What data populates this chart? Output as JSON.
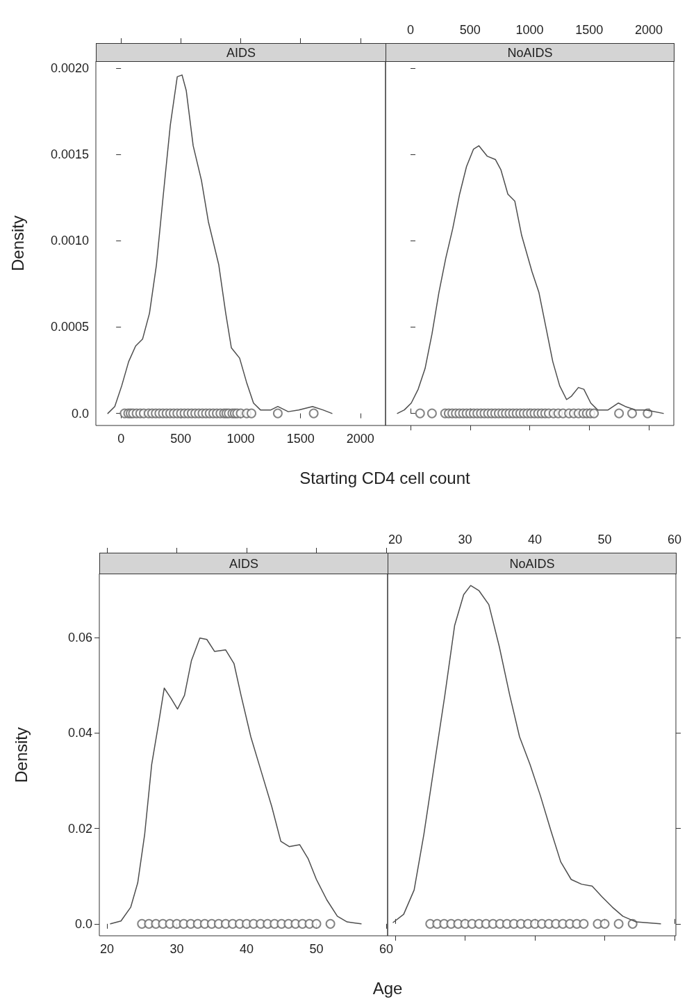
{
  "chart_data": [
    {
      "type": "line",
      "title": "AIDS",
      "xlabel": "Starting CD4 cell count",
      "ylabel": "Density",
      "xlim": [
        -210,
        2210
      ],
      "xticks": [
        0,
        500,
        1000,
        1500,
        2000
      ],
      "ylim": [
        -7e-05,
        0.00204
      ],
      "yticks": [
        {
          "value": 0,
          "label": "0.0"
        },
        0.0005,
        {
          "value": 0.001,
          "label": "0.0010"
        },
        0.0015,
        {
          "value": 0.002,
          "label": "0.0020"
        }
      ],
      "series": [
        {
          "type": "line",
          "marker": "none",
          "color": "#4d4d4d",
          "x": [
            -110,
            -52,
            6,
            64,
            122,
            180,
            238,
            296,
            354,
            412,
            470,
            510,
            545,
            603,
            672,
            730,
            817,
            875,
            922,
            991,
            1049,
            1107,
            1165,
            1252,
            1310,
            1397,
            1484,
            1600,
            1687,
            1762
          ],
          "values": [
            0,
            4e-05,
            0.00016,
            0.0003,
            0.00039,
            0.00043,
            0.00058,
            0.00086,
            0.00127,
            0.00167,
            0.00195,
            0.00196,
            0.00187,
            0.00155,
            0.00135,
            0.00111,
            0.00086,
            0.00058,
            0.00038,
            0.00032,
            0.00018,
            6e-05,
            2e-05,
            2e-05,
            4e-05,
            1e-05,
            2e-05,
            4e-05,
            2e-05,
            0
          ]
        },
        {
          "type": "scatter",
          "marker": "circle",
          "color": "#666666",
          "x": [
            30,
            60,
            80,
            100,
            130,
            160,
            190,
            230,
            260,
            290,
            320,
            350,
            380,
            410,
            440,
            470,
            500,
            530,
            560,
            590,
            620,
            650,
            680,
            710,
            740,
            770,
            800,
            830,
            860,
            880,
            900,
            930,
            950,
            970,
            1000,
            1050,
            1090,
            1310,
            1610
          ],
          "values": [
            0,
            0,
            0,
            0,
            0,
            0,
            0,
            0,
            0,
            0,
            0,
            0,
            0,
            0,
            0,
            0,
            0,
            0,
            0,
            0,
            0,
            0,
            0,
            0,
            0,
            0,
            0,
            0,
            0,
            0,
            0,
            0,
            0,
            0,
            0,
            0,
            0,
            0,
            0
          ]
        }
      ]
    },
    {
      "type": "line",
      "title": "NoAIDS",
      "tick_labels": "x",
      "xlim": [
        -210,
        2210
      ],
      "xticks": [
        0,
        500,
        1000,
        1500,
        2000
      ],
      "ylim": [
        -7e-05,
        0.00204
      ],
      "yticks": [
        0,
        0.0005,
        0.001,
        0.0015,
        0.002
      ],
      "series": [
        {
          "type": "line",
          "marker": "none",
          "color": "#4d4d4d",
          "x": [
            -110,
            -52,
            6,
            64,
            122,
            180,
            238,
            296,
            354,
            412,
            470,
            528,
            574,
            643,
            713,
            759,
            817,
            875,
            933,
            1020,
            1078,
            1136,
            1194,
            1252,
            1310,
            1351,
            1409,
            1455,
            1513,
            1571,
            1658,
            1745,
            1803,
            1890,
            1977,
            2122
          ],
          "values": [
            0,
            2e-05,
            6e-05,
            0.00014,
            0.00026,
            0.00046,
            0.0007,
            0.0009,
            0.00107,
            0.00127,
            0.00143,
            0.00153,
            0.00155,
            0.00149,
            0.00147,
            0.00141,
            0.00127,
            0.00123,
            0.00103,
            0.00082,
            0.0007,
            0.0005,
            0.0003,
            0.00016,
            8e-05,
            0.0001,
            0.00015,
            0.00014,
            6e-05,
            2e-05,
            2e-05,
            6e-05,
            4e-05,
            2e-05,
            2e-05,
            0
          ]
        },
        {
          "type": "scatter",
          "marker": "circle",
          "color": "#666666",
          "x": [
            80,
            180,
            290,
            320,
            350,
            380,
            410,
            440,
            470,
            500,
            530,
            560,
            590,
            620,
            650,
            680,
            710,
            740,
            770,
            800,
            830,
            860,
            890,
            920,
            950,
            980,
            1010,
            1040,
            1070,
            1100,
            1130,
            1160,
            1200,
            1240,
            1280,
            1330,
            1370,
            1410,
            1450,
            1480,
            1510,
            1540,
            1750,
            1860,
            1990
          ],
          "values": [
            0,
            0,
            0,
            0,
            0,
            0,
            0,
            0,
            0,
            0,
            0,
            0,
            0,
            0,
            0,
            0,
            0,
            0,
            0,
            0,
            0,
            0,
            0,
            0,
            0,
            0,
            0,
            0,
            0,
            0,
            0,
            0,
            0,
            0,
            0,
            0,
            0,
            0,
            0,
            0,
            0,
            0,
            0,
            0,
            0
          ]
        }
      ]
    },
    {
      "type": "line",
      "title": "AIDS",
      "xlabel": "Age",
      "ylabel": "Density",
      "xlim": [
        18.9,
        60.2
      ],
      "xticks": [
        20,
        30,
        40,
        50,
        60
      ],
      "ylim": [
        -0.0025,
        0.0734
      ],
      "yticks": [
        {
          "value": 0,
          "label": "0.0"
        },
        0.02,
        0.04,
        0.06
      ],
      "series": [
        {
          "type": "line",
          "marker": "none",
          "color": "#4d4d4d",
          "x": [
            20.5,
            22,
            23.4,
            24.4,
            25.4,
            26.4,
            27.4,
            28.2,
            29.2,
            30.1,
            31.1,
            32.1,
            33.3,
            34.3,
            35.4,
            37,
            38.2,
            39.2,
            40.6,
            42.1,
            43.6,
            44.9,
            46.1,
            47.6,
            48.8,
            50,
            51.5,
            53,
            54.4,
            56.4
          ],
          "values": [
            0,
            0.0006,
            0.0035,
            0.0086,
            0.0188,
            0.0334,
            0.0421,
            0.0494,
            0.0472,
            0.045,
            0.0479,
            0.0552,
            0.0599,
            0.0596,
            0.0571,
            0.0574,
            0.0545,
            0.0479,
            0.0392,
            0.0319,
            0.0246,
            0.0173,
            0.0162,
            0.0166,
            0.0137,
            0.0093,
            0.005,
            0.0016,
            0.0004,
            0
          ]
        },
        {
          "type": "scatter",
          "marker": "circle",
          "color": "#666666",
          "x": [
            25,
            26,
            27,
            28,
            29,
            30,
            31,
            32,
            33,
            34,
            35,
            36,
            37,
            38,
            39,
            40,
            41,
            42,
            43,
            44,
            45,
            46,
            47,
            48,
            49,
            50,
            52
          ],
          "values": [
            0,
            0,
            0,
            0,
            0,
            0,
            0,
            0,
            0,
            0,
            0,
            0,
            0,
            0,
            0,
            0,
            0,
            0,
            0,
            0,
            0,
            0,
            0,
            0,
            0,
            0,
            0
          ]
        }
      ]
    },
    {
      "type": "line",
      "title": "NoAIDS",
      "tick_labels": "x",
      "xlim": [
        18.9,
        60.2
      ],
      "xticks": [
        20,
        30,
        40,
        50,
        60
      ],
      "ylim": [
        -0.0025,
        0.0734
      ],
      "yticks": [
        0,
        0.02,
        0.04,
        0.06
      ],
      "series": [
        {
          "type": "line",
          "marker": "none",
          "color": "#4d4d4d",
          "x": [
            19.7,
            21.2,
            22.7,
            24.1,
            25.6,
            27.1,
            28.5,
            29.8,
            30.8,
            32,
            33.4,
            34.9,
            36.4,
            37.8,
            39.3,
            40.8,
            42.3,
            43.7,
            45.2,
            46.7,
            48.2,
            49.6,
            51.1,
            52.6,
            54.5,
            58
          ],
          "values": [
            0.0003,
            0.002,
            0.0071,
            0.0188,
            0.0334,
            0.0479,
            0.0625,
            0.069,
            0.0709,
            0.0698,
            0.0669,
            0.0581,
            0.0479,
            0.0392,
            0.0334,
            0.0268,
            0.0195,
            0.013,
            0.0093,
            0.0083,
            0.0079,
            0.0057,
            0.0035,
            0.0016,
            0.0004,
            0
          ]
        },
        {
          "type": "scatter",
          "marker": "circle",
          "color": "#666666",
          "x": [
            25,
            26,
            27,
            28,
            29,
            30,
            31,
            32,
            33,
            34,
            35,
            36,
            37,
            38,
            39,
            40,
            41,
            42,
            43,
            44,
            45,
            46,
            47,
            49,
            50,
            52,
            54
          ],
          "values": [
            0,
            0,
            0,
            0,
            0,
            0,
            0,
            0,
            0,
            0,
            0,
            0,
            0,
            0,
            0,
            0,
            0,
            0,
            0,
            0,
            0,
            0,
            0,
            0,
            0,
            0,
            0
          ]
        }
      ]
    }
  ]
}
